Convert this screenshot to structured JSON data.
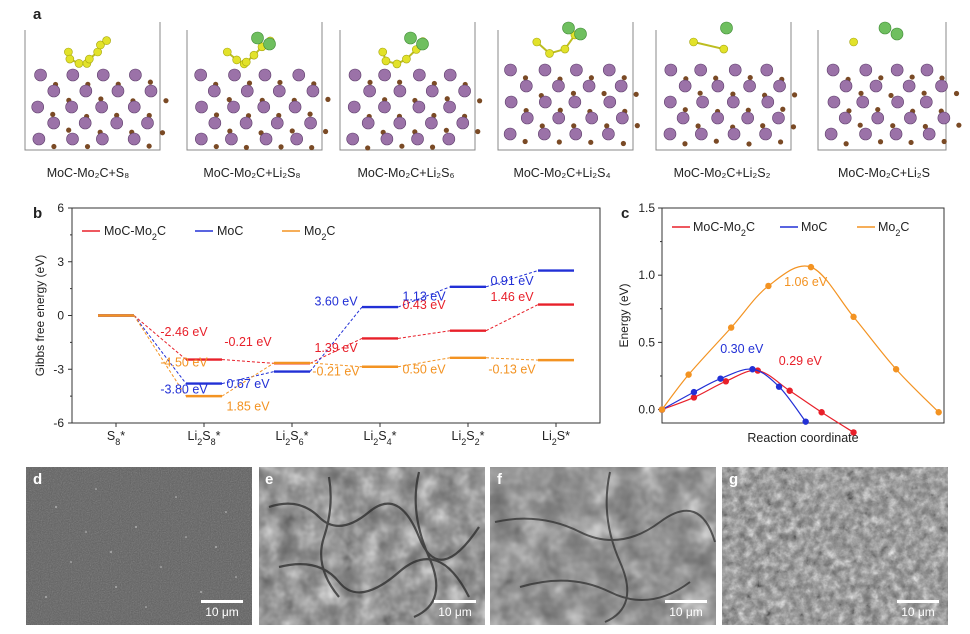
{
  "panel_a": {
    "letter": "a",
    "structures": [
      {
        "label": "MoC-Mo₂C+S₈",
        "green": 0
      },
      {
        "label": "MoC-Mo₂C+Li₂S₈",
        "green": 2
      },
      {
        "label": "MoC-Mo₂C+Li₂S₆",
        "green": 2
      },
      {
        "label": "MoC-Mo₂C+Li₂S₄",
        "green": 2
      },
      {
        "label": "MoC-Mo₂C+Li₂S₂",
        "green": 1
      },
      {
        "label": "MoC-Mo₂C+Li₂S",
        "green": 2
      }
    ],
    "colors": {
      "mo": "#9b72a8",
      "c": "#7a4a25",
      "s": "#e2e22a",
      "li": "#6fbf5f"
    }
  },
  "panel_b": {
    "letter": "b"
  },
  "panel_c": {
    "letter": "c"
  },
  "panels_sem": [
    {
      "letter": "d",
      "scale": "10 μm"
    },
    {
      "letter": "e",
      "scale": "10 μm"
    },
    {
      "letter": "f",
      "scale": "10 μm"
    },
    {
      "letter": "g",
      "scale": "10 μm"
    }
  ],
  "chart_data": [
    {
      "type": "line",
      "subtype": "energy-level-diagram",
      "ylabel": "Gibbs free energy (eV)",
      "xlabel": "",
      "ylim": [
        -6,
        6
      ],
      "yticks": [
        "6",
        "3",
        "0",
        "-3",
        "-6"
      ],
      "categories": [
        "S₈*",
        "Li₂S₈*",
        "Li₂S₆*",
        "Li₂S₄*",
        "Li₂S₂*",
        "Li₂S*"
      ],
      "series": [
        {
          "name": "MoC-Mo₂C",
          "color": "#e8202a",
          "values": [
            0,
            -2.46,
            -2.67,
            -1.28,
            -0.85,
            0.61
          ],
          "step_labels": [
            "-2.46 eV",
            "-0.21 eV",
            "1.39 eV",
            "0.43 eV",
            "1.46 eV"
          ]
        },
        {
          "name": "MoC",
          "color": "#2230d6",
          "values": [
            0,
            -3.8,
            -3.13,
            0.47,
            1.6,
            2.51
          ],
          "step_labels": [
            "-3.80 eV",
            "0.67 eV",
            "3.60 eV",
            "1.13 eV",
            "0.91 eV"
          ]
        },
        {
          "name": "Mo₂C",
          "color": "#f39322",
          "values": [
            0,
            -4.5,
            -2.65,
            -2.86,
            -2.36,
            -2.49
          ],
          "step_labels": [
            "-4.50 eV",
            "1.85 eV",
            "-0.21 eV",
            "0.50 eV",
            "-0.13 eV"
          ]
        }
      ],
      "legend_position": "top"
    },
    {
      "type": "line",
      "subtype": "reaction-barrier",
      "xlabel": "Reaction coordinate",
      "ylabel": "Energy (eV)",
      "ylim": [
        -0.1,
        1.5
      ],
      "yticks": [
        "1.5",
        "1.0",
        "0.5",
        "0.0"
      ],
      "series": [
        {
          "name": "MoC-Mo₂C",
          "color": "#e8202a",
          "barrier_label": "0.29 eV",
          "x": [
            0,
            0.3,
            0.6,
            0.9,
            1.2,
            1.5,
            1.8
          ],
          "y": [
            0,
            0.09,
            0.21,
            0.29,
            0.14,
            -0.02,
            -0.17
          ]
        },
        {
          "name": "MoC",
          "color": "#2230d6",
          "barrier_label": "0.30 eV",
          "x": [
            0,
            0.3,
            0.55,
            0.85,
            1.1,
            1.35
          ],
          "y": [
            0,
            0.13,
            0.23,
            0.3,
            0.17,
            -0.09
          ]
        },
        {
          "name": "Mo₂C",
          "color": "#f39322",
          "barrier_label": "1.06 eV",
          "x": [
            0,
            0.25,
            0.65,
            1.0,
            1.4,
            1.8,
            2.2,
            2.6
          ],
          "y": [
            0,
            0.26,
            0.61,
            0.92,
            1.06,
            0.69,
            0.3,
            -0.02
          ]
        }
      ],
      "legend_position": "top"
    }
  ]
}
